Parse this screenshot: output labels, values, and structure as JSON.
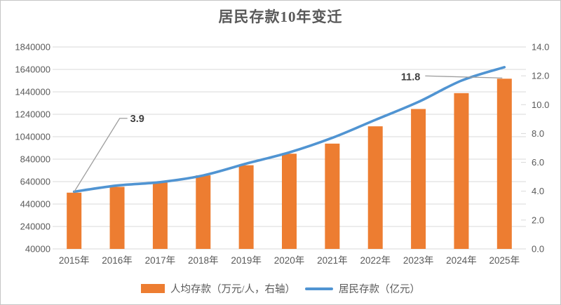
{
  "window": {
    "background": "#ffffff",
    "border_color": "#c6c6c6"
  },
  "chart_data": {
    "type": "combo",
    "title": "居民存款10年变迁",
    "categories": [
      "2015年",
      "2016年",
      "2017年",
      "2018年",
      "2019年",
      "2020年",
      "2021年",
      "2022年",
      "2023年",
      "2024年",
      "2025年"
    ],
    "series": [
      {
        "name": "人均存款（万元/人，右轴）",
        "type": "bar",
        "axis": "right",
        "color": "#ED7D31",
        "values": [
          3.9,
          4.3,
          4.6,
          5.1,
          5.8,
          6.6,
          7.3,
          8.5,
          9.7,
          10.8,
          11.8
        ]
      },
      {
        "name": "居民存款（亿元）",
        "type": "line",
        "axis": "left",
        "color": "#5094D2",
        "values": [
          550000,
          605000,
          635000,
          695000,
          800000,
          900000,
          1030000,
          1190000,
          1350000,
          1540000,
          1660000
        ]
      }
    ],
    "left_axis": {
      "min": 40000,
      "max": 1840000,
      "step": 200000,
      "tick_labels": [
        "1840000",
        "1640000",
        "1440000",
        "1240000",
        "1040000",
        "840000",
        "640000",
        "440000",
        "240000",
        "40000"
      ]
    },
    "right_axis": {
      "min": 0,
      "max": 14,
      "step": 2,
      "decimals": 1,
      "tick_labels": [
        "14.0",
        "12.0",
        "10.0",
        "8.0",
        "6.0",
        "4.0",
        "2.0",
        "0.0"
      ]
    },
    "annotations": [
      {
        "text": "3.9",
        "series": 0,
        "index": 0
      },
      {
        "text": "11.8",
        "series": 0,
        "index": 10
      }
    ],
    "grid": true,
    "legend_position": "bottom",
    "colors": {
      "grid": "#D9D9D9",
      "axis_text": "#595959",
      "x_text": "#595959",
      "annotation_text": "#3f3f3f",
      "leader_line": "#9e9e9e"
    }
  }
}
